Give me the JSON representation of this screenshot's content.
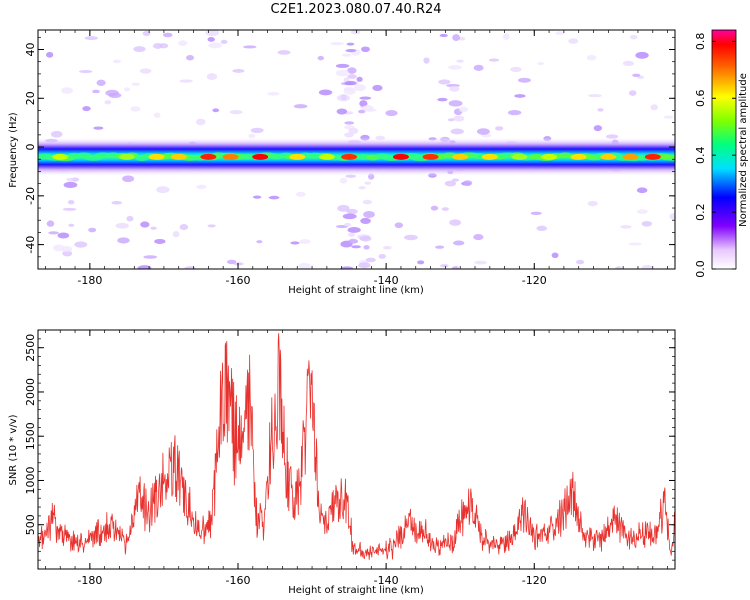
{
  "title": "C2E1.2023.080.07.40.R24",
  "colors": {
    "snr_line": "#e8302c",
    "axis": "#000000",
    "background": "#ffffff"
  },
  "chart_data": [
    {
      "type": "heatmap",
      "xlabel": "Height of straight line (km)",
      "ylabel": "Frequency (Hz)",
      "xlim": [
        -187,
        -101
      ],
      "ylim": [
        -50,
        48
      ],
      "x_ticks": [
        "-180",
        "-160",
        "-140",
        "-120"
      ],
      "y_ticks": [
        "40",
        "20",
        "0",
        "-20",
        "-40"
      ],
      "colorbar": {
        "label": "Normalized spectral amplitude",
        "range": [
          0,
          0.84
        ],
        "ticks": [
          "0.0",
          "0.2",
          "0.4",
          "0.6",
          "0.8"
        ],
        "colormap": "rainbow (white-purple-blue-cyan-green-yellow-red-magenta)"
      },
      "band": {
        "center_hz": -4,
        "width_hz": 8,
        "description": "Continuous horizontal band of high amplitude centered near -4 Hz across the whole height range; peak amplitudes (red) near -164, -157, -145, -138, -108 km"
      }
    },
    {
      "type": "line",
      "xlabel": "Height of straight line (km)",
      "ylabel": "SNR (10 * v/v)",
      "xlim": [
        -187,
        -101
      ],
      "ylim": [
        0,
        2700
      ],
      "x_ticks": [
        "-180",
        "-160",
        "-140",
        "-120"
      ],
      "y_ticks": [
        "500",
        "1000",
        "1500",
        "2000",
        "2500"
      ],
      "series": [
        {
          "x": [
            -187,
            -185,
            -183,
            -181,
            -179,
            -177,
            -175,
            -173.5,
            -172,
            -170,
            -168.5,
            -167,
            -165,
            -163.5,
            -162,
            -161.3,
            -160.5,
            -159.5,
            -158.5,
            -157.5,
            -156.5,
            -155.5,
            -154.5,
            -153.5,
            -152.5,
            -151.5,
            -150.5,
            -149.7,
            -149,
            -148,
            -147,
            -146,
            -145.2,
            -144.5,
            -143,
            -141,
            -139,
            -137,
            -135,
            -133,
            -131,
            -130,
            -128.5,
            -127,
            -125,
            -123,
            -121.5,
            -120,
            -118,
            -116,
            -115,
            -114,
            -113,
            -111,
            -109,
            -107,
            -105,
            -103.5,
            -102.5,
            -101.5,
            -101
          ],
          "y": [
            300,
            700,
            400,
            350,
            500,
            600,
            300,
            1000,
            800,
            1200,
            1400,
            900,
            500,
            700,
            2600,
            2550,
            1800,
            1600,
            2300,
            700,
            600,
            1700,
            2700,
            1400,
            900,
            1200,
            2450,
            1900,
            700,
            600,
            900,
            950,
            900,
            300,
            200,
            250,
            300,
            650,
            500,
            300,
            350,
            650,
            900,
            400,
            300,
            400,
            800,
            450,
            500,
            750,
            1100,
            700,
            450,
            350,
            700,
            400,
            500,
            450,
            900,
            200,
            650
          ]
        }
      ]
    }
  ]
}
